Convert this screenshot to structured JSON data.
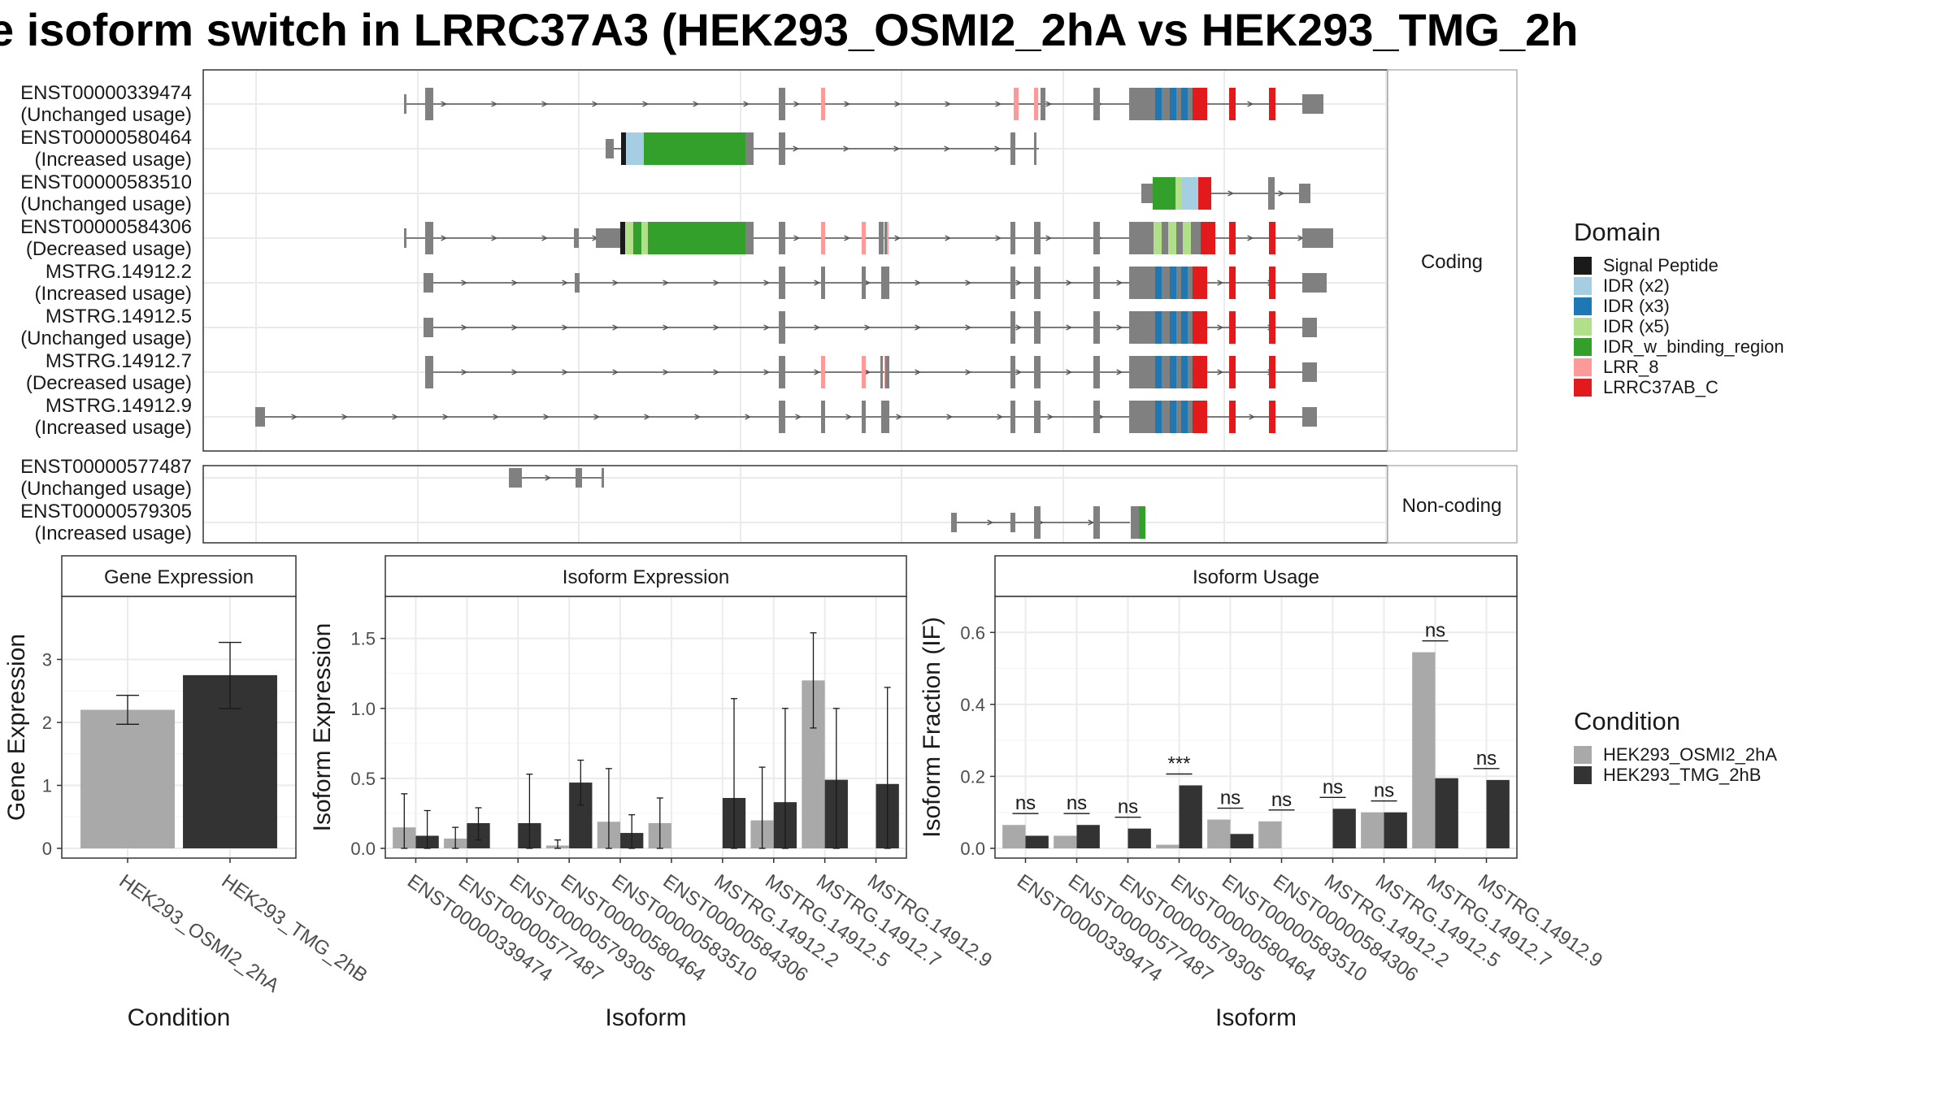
{
  "title": "e isoform switch in LRRC37A3 (HEK293_OSMI2_2hA vs HEK293_TMG_2h",
  "domain_legend": {
    "title": "Domain",
    "items": [
      {
        "label": "Signal Peptide",
        "color": "#1a1a1a"
      },
      {
        "label": "IDR (x2)",
        "color": "#a6cee3"
      },
      {
        "label": "IDR (x3)",
        "color": "#1f78b4"
      },
      {
        "label": "IDR (x5)",
        "color": "#b2df8a"
      },
      {
        "label": "IDR_w_binding_region",
        "color": "#33a02c"
      },
      {
        "label": "LRR_8",
        "color": "#fb9a99"
      },
      {
        "label": "LRRC37AB_C",
        "color": "#e31a1c"
      }
    ]
  },
  "condition_legend": {
    "title": "Condition",
    "items": [
      {
        "label": "HEK293_OSMI2_2hA",
        "color": "#a9a9a9"
      },
      {
        "label": "HEK293_TMG_2hB",
        "color": "#333333"
      }
    ]
  },
  "structure": {
    "coding_strip": "Coding",
    "noncoding_strip": "Non-coding",
    "coding": [
      {
        "name": "ENST00000339474",
        "usage": "(Unchanged usage)"
      },
      {
        "name": "ENST00000580464",
        "usage": "(Increased usage)"
      },
      {
        "name": "ENST00000583510",
        "usage": "(Unchanged usage)"
      },
      {
        "name": "ENST00000584306",
        "usage": "(Decreased usage)"
      },
      {
        "name": "MSTRG.14912.2",
        "usage": "(Increased usage)"
      },
      {
        "name": "MSTRG.14912.5",
        "usage": "(Unchanged usage)"
      },
      {
        "name": "MSTRG.14912.7",
        "usage": "(Decreased usage)"
      },
      {
        "name": "MSTRG.14912.9",
        "usage": "(Increased usage)"
      }
    ],
    "noncoding": [
      {
        "name": "ENST00000577487",
        "usage": "(Unchanged usage)"
      },
      {
        "name": "ENST00000579305",
        "usage": "(Increased usage)"
      }
    ]
  },
  "chart_data": [
    {
      "type": "bar",
      "panel": "Gene Expression",
      "xlabel": "Condition",
      "ylabel": "Gene Expression",
      "ylim": [
        0,
        4
      ],
      "yticks": [
        0,
        1,
        2,
        3
      ],
      "categories": [
        "HEK293_OSMI2_2hA",
        "HEK293_TMG_2hB"
      ],
      "values": [
        2.2,
        2.75
      ],
      "errors": [
        [
          1.97,
          2.43
        ],
        [
          2.22,
          3.27
        ]
      ]
    },
    {
      "type": "bar",
      "panel": "Isoform Expression",
      "xlabel": "Isoform",
      "ylabel": "Isoform Expression",
      "ylim": [
        0,
        1.8
      ],
      "yticks": [
        0.0,
        0.5,
        1.0,
        1.5
      ],
      "categories": [
        "ENST00000339474",
        "ENST00000577487",
        "ENST00000579305",
        "ENST00000580464",
        "ENST00000583510",
        "ENST00000584306",
        "MSTRG.14912.2",
        "MSTRG.14912.5",
        "MSTRG.14912.7",
        "MSTRG.14912.9"
      ],
      "series": [
        {
          "name": "HEK293_OSMI2_2hA",
          "values": [
            0.15,
            0.07,
            0.0,
            0.02,
            0.19,
            0.18,
            0.0,
            0.2,
            1.2,
            0.0
          ],
          "errors": [
            [
              0.0,
              0.39
            ],
            [
              0.0,
              0.15
            ],
            null,
            [
              0.0,
              0.06
            ],
            [
              0.0,
              0.57
            ],
            [
              0.0,
              0.36
            ],
            null,
            [
              0.0,
              0.58
            ],
            [
              0.86,
              1.54
            ],
            null
          ]
        },
        {
          "name": "HEK293_TMG_2hB",
          "values": [
            0.09,
            0.18,
            0.18,
            0.47,
            0.11,
            0.0,
            0.36,
            0.33,
            0.49,
            0.46
          ],
          "errors": [
            [
              0.0,
              0.27
            ],
            [
              0.06,
              0.29
            ],
            [
              0.0,
              0.53
            ],
            [
              0.31,
              0.63
            ],
            [
              0.0,
              0.24
            ],
            null,
            [
              0.0,
              1.07
            ],
            [
              0.0,
              1.0
            ],
            [
              0.0,
              1.0
            ],
            [
              0.0,
              1.15
            ]
          ]
        }
      ]
    },
    {
      "type": "bar",
      "panel": "Isoform Usage",
      "xlabel": "Isoform",
      "ylabel": "Isoform Fraction (IF)",
      "ylim": [
        0,
        0.7
      ],
      "yticks": [
        0.0,
        0.2,
        0.4,
        0.6
      ],
      "categories": [
        "ENST00000339474",
        "ENST00000577487",
        "ENST00000579305",
        "ENST00000580464",
        "ENST00000583510",
        "ENST00000584306",
        "MSTRG.14912.2",
        "MSTRG.14912.5",
        "MSTRG.14912.7",
        "MSTRG.14912.9"
      ],
      "series": [
        {
          "name": "HEK293_OSMI2_2hA",
          "values": [
            0.065,
            0.035,
            0.0,
            0.01,
            0.08,
            0.075,
            0.0,
            0.1,
            0.545,
            0.0
          ]
        },
        {
          "name": "HEK293_TMG_2hB",
          "values": [
            0.035,
            0.065,
            0.055,
            0.175,
            0.04,
            0.0,
            0.11,
            0.1,
            0.195,
            0.19
          ]
        }
      ],
      "significance": [
        "ns",
        "ns",
        "ns",
        "***",
        "ns",
        "ns",
        "ns",
        "ns",
        "ns",
        "ns"
      ]
    }
  ]
}
